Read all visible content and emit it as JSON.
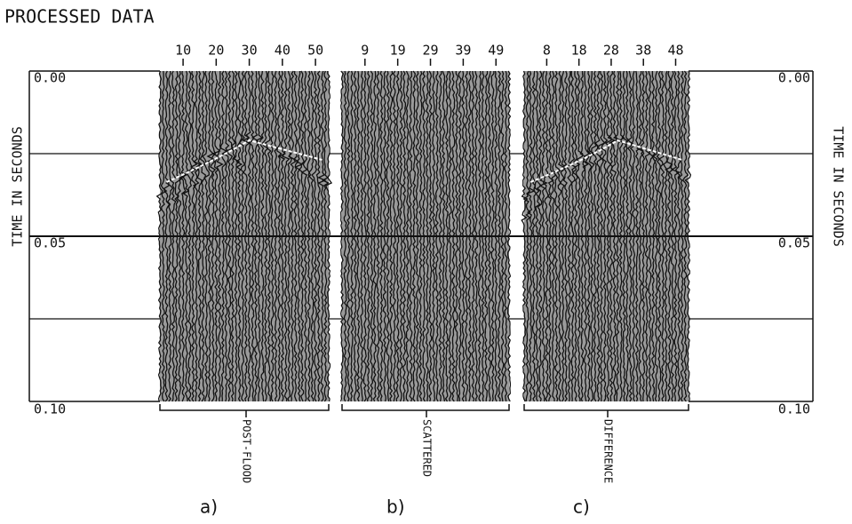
{
  "chart_data": {
    "type": "seismic",
    "title": "PROCESSED DATA",
    "ylabel": "TIME IN SECONDS",
    "ylim": [
      0,
      0.1
    ],
    "yticks": [
      {
        "value": 0,
        "label": "0.00"
      },
      {
        "value": 0.05,
        "label": "0.05"
      },
      {
        "value": 0.1,
        "label": "0.10"
      }
    ],
    "minor_gridlines": [
      0.025,
      0.075
    ],
    "panels": [
      {
        "label": "a)",
        "name": "POST-FLOOD",
        "xlim": [
          3,
          54
        ],
        "xticks": [
          10,
          20,
          30,
          40,
          50
        ]
      },
      {
        "label": "b)",
        "name": "SCATTERED",
        "xlim": [
          2,
          53
        ],
        "xticks": [
          9,
          19,
          29,
          39,
          49
        ]
      },
      {
        "label": "c)",
        "name": "DIFFERENCE",
        "xlim": [
          1,
          52
        ],
        "xticks": [
          8,
          18,
          28,
          38,
          48
        ]
      }
    ]
  }
}
